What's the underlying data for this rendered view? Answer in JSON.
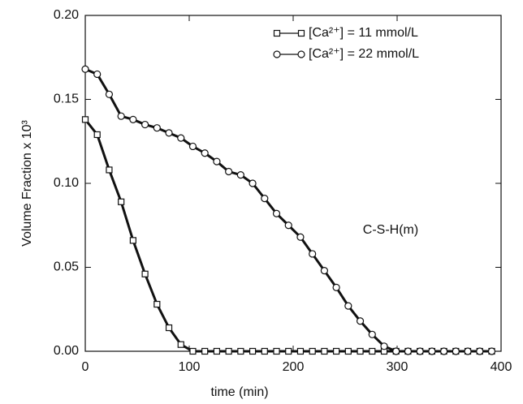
{
  "chart_data": {
    "type": "line",
    "x_label": "time (min)",
    "y_label": "Volume Fraction x 10³",
    "annotation": "C-S-H(m)",
    "x": [
      0,
      11.5,
      23,
      34.5,
      46,
      57.5,
      69,
      80.5,
      92,
      103.5,
      115,
      126.5,
      138,
      149.5,
      161,
      172.5,
      184,
      195.5,
      207,
      218.5,
      230,
      241.5,
      253,
      264.5,
      276,
      287.5,
      299,
      310.5,
      322,
      333.5,
      345,
      356.5,
      368,
      379.5,
      391
    ],
    "series": [
      {
        "name": "[Ca²⁺] = 11 mmol/L",
        "color": "#111111",
        "marker": "square",
        "values": [
          0.138,
          0.129,
          0.108,
          0.089,
          0.066,
          0.046,
          0.028,
          0.014,
          0.004,
          0,
          0,
          0,
          0,
          0,
          0,
          0,
          0,
          0,
          0,
          0,
          0,
          0,
          0,
          0,
          0,
          0,
          0,
          0,
          0,
          0,
          0,
          0,
          0,
          0,
          0
        ]
      },
      {
        "name": "[Ca²⁺] = 22 mmol/L",
        "color": "#111111",
        "marker": "circle",
        "values": [
          0.168,
          0.165,
          0.153,
          0.14,
          0.138,
          0.135,
          0.133,
          0.13,
          0.127,
          0.122,
          0.118,
          0.113,
          0.107,
          0.105,
          0.1,
          0.091,
          0.082,
          0.075,
          0.068,
          0.058,
          0.048,
          0.038,
          0.027,
          0.018,
          0.01,
          0.003,
          0,
          0,
          0,
          0,
          0,
          0,
          0,
          0,
          0
        ]
      }
    ],
    "xlim": [
      0,
      400
    ],
    "xticks": [
      0,
      100,
      200,
      300,
      400
    ],
    "ylim": [
      0,
      0.2
    ],
    "yticks": [
      {
        "value": 0,
        "label": "0.00"
      },
      {
        "value": 0.05,
        "label": "0.05"
      },
      {
        "value": 0.1,
        "label": "0.10"
      },
      {
        "value": 0.15,
        "label": "0.15"
      },
      {
        "value": 0.2,
        "label": "0.20"
      }
    ],
    "legend": "top-right"
  }
}
